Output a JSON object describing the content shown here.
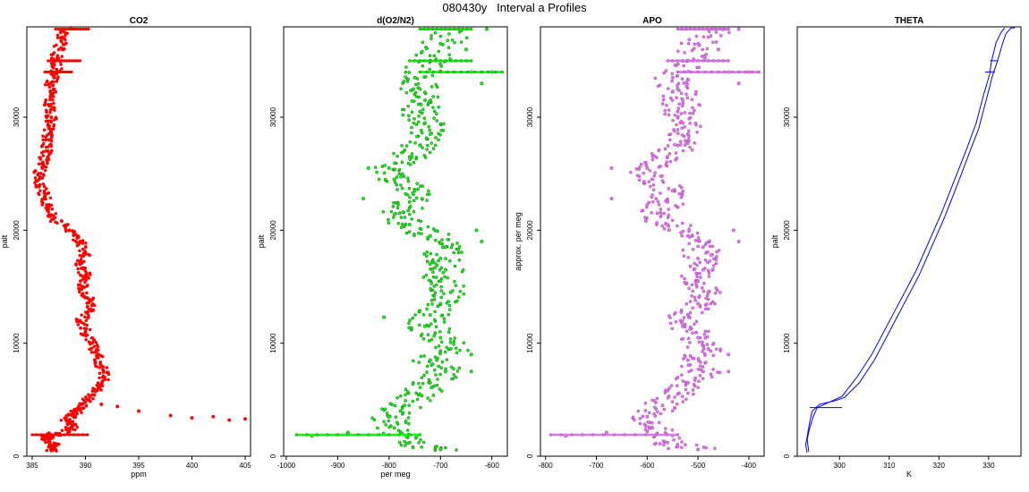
{
  "figure": {
    "title": "080430y   Interval a Profiles"
  },
  "chart_data": [
    {
      "type": "scatter",
      "title": "CO2",
      "xlabel": "ppm",
      "ylabel": "palt",
      "xlim": [
        384.5,
        405.5
      ],
      "ylim": [
        0,
        38000
      ],
      "xticks": [
        "385",
        "390",
        "395",
        "400",
        "405"
      ],
      "yticks": [
        "0",
        "10000",
        "20000",
        "30000"
      ],
      "color": "#ff0000",
      "series": [
        {
          "values_xy": [
            [
              386.8,
              500
            ],
            [
              387.2,
              1000
            ],
            [
              386.2,
              1500
            ],
            [
              386.5,
              1800
            ],
            [
              388.5,
              2200
            ],
            [
              388.8,
              2700
            ],
            [
              388.2,
              3200
            ],
            [
              388.8,
              3700
            ],
            [
              389.6,
              4200
            ],
            [
              390.2,
              5000
            ],
            [
              391.2,
              6000
            ],
            [
              391.8,
              7000
            ],
            [
              391.5,
              8000
            ],
            [
              391.2,
              9000
            ],
            [
              390.5,
              10000
            ],
            [
              390,
              11000
            ],
            [
              389.5,
              12000
            ],
            [
              390.5,
              13000
            ],
            [
              390.2,
              14000
            ],
            [
              389.8,
              15000
            ],
            [
              390,
              16000
            ],
            [
              389.5,
              17000
            ],
            [
              390,
              18000
            ],
            [
              389.5,
              19000
            ],
            [
              388.5,
              20000
            ],
            [
              387,
              21000
            ],
            [
              386.5,
              22000
            ],
            [
              386.2,
              23000
            ],
            [
              385.7,
              24000
            ],
            [
              385.6,
              25000
            ],
            [
              386,
              26000
            ],
            [
              386.5,
              27000
            ],
            [
              386.3,
              28000
            ],
            [
              386.6,
              29000
            ],
            [
              386.8,
              30000
            ],
            [
              386.6,
              31000
            ],
            [
              386.8,
              32000
            ],
            [
              386.7,
              33000
            ],
            [
              387.3,
              34000
            ],
            [
              387.2,
              35000
            ],
            [
              387.5,
              36000
            ],
            [
              387.8,
              37000
            ],
            [
              388.2,
              37800
            ]
          ]
        },
        {
          "values_xy": [
            [
              391.5,
              4600
            ],
            [
              393,
              4400
            ],
            [
              395,
              4000
            ],
            [
              398,
              3600
            ],
            [
              400,
              3400
            ],
            [
              402,
              3500
            ],
            [
              403.5,
              3200
            ],
            [
              405,
              3300
            ]
          ]
        }
      ],
      "segments": [
        {
          "y": 37800,
          "x": [
            387.2,
            390.3
          ]
        },
        {
          "y": 35000,
          "x": [
            386.5,
            389.5
          ]
        },
        {
          "y": 34000,
          "x": [
            386.2,
            388.7
          ]
        },
        {
          "y": 1900,
          "x": [
            385,
            390.2
          ]
        }
      ]
    },
    {
      "type": "scatter",
      "title": "d(O2/N2)",
      "xlabel": "per meg",
      "ylabel": "palt",
      "xlim": [
        -1005,
        -570
      ],
      "ylim": [
        0,
        38000
      ],
      "xticks": [
        "-1000",
        "-900",
        "-800",
        "-700",
        "-600"
      ],
      "yticks": [
        "0",
        "10000",
        "20000",
        "30000"
      ],
      "color": "#00ff00",
      "edge_color": "#333333",
      "series": [
        {
          "values_xy": [
            [
              -700,
              600
            ],
            [
              -760,
              1200
            ],
            [
              -790,
              2500
            ],
            [
              -800,
              3500
            ],
            [
              -770,
              4500
            ],
            [
              -740,
              5500
            ],
            [
              -720,
              6500
            ],
            [
              -690,
              7500
            ],
            [
              -720,
              8500
            ],
            [
              -680,
              9500
            ],
            [
              -700,
              10500
            ],
            [
              -730,
              11500
            ],
            [
              -720,
              12500
            ],
            [
              -700,
              13500
            ],
            [
              -680,
              14500
            ],
            [
              -700,
              15500
            ],
            [
              -690,
              16500
            ],
            [
              -700,
              17500
            ],
            [
              -690,
              18500
            ],
            [
              -720,
              19500
            ],
            [
              -760,
              20500
            ],
            [
              -780,
              21500
            ],
            [
              -760,
              22500
            ],
            [
              -750,
              23500
            ],
            [
              -790,
              24500
            ],
            [
              -800,
              25500
            ],
            [
              -760,
              26500
            ],
            [
              -740,
              27500
            ],
            [
              -720,
              28500
            ],
            [
              -730,
              29500
            ],
            [
              -740,
              30500
            ],
            [
              -730,
              31500
            ],
            [
              -740,
              32500
            ],
            [
              -750,
              33500
            ],
            [
              -720,
              35000
            ],
            [
              -700,
              36500
            ],
            [
              -670,
              37800
            ]
          ]
        },
        {
          "values_xy": [
            [
              -610,
              37800
            ],
            [
              -650,
              36000
            ],
            [
              -640,
              34000
            ],
            [
              -600,
              34000
            ],
            [
              -620,
              33000
            ],
            [
              -840,
              25500
            ],
            [
              -850,
              22800
            ],
            [
              -810,
              12300
            ],
            [
              -630,
              20000
            ],
            [
              -620,
              19000
            ],
            [
              -640,
              9000
            ],
            [
              -640,
              7500
            ],
            [
              -880,
              2100
            ],
            [
              -950,
              1800
            ]
          ]
        }
      ],
      "segments": [
        {
          "y": 37800,
          "x": [
            -740,
            -640
          ]
        },
        {
          "y": 35000,
          "x": [
            -760,
            -640
          ]
        },
        {
          "y": 34000,
          "x": [
            -740,
            -580
          ]
        },
        {
          "y": 1900,
          "x": [
            -980,
            -740
          ]
        }
      ]
    },
    {
      "type": "scatter",
      "title": "APO",
      "xlabel": "",
      "ylabel": "approx. per meg",
      "xlim": [
        -810,
        -370
      ],
      "ylim": [
        0,
        38000
      ],
      "xticks": [
        "-800",
        "-700",
        "-600",
        "-500",
        "-400"
      ],
      "yticks": [
        "0",
        "10000",
        "20000",
        "30000"
      ],
      "color": "#dd77ee",
      "edge_color": "#993399",
      "series": [
        {
          "values_xy": [
            [
              -500,
              600
            ],
            [
              -560,
              1200
            ],
            [
              -590,
              2500
            ],
            [
              -600,
              3500
            ],
            [
              -570,
              4500
            ],
            [
              -540,
              5500
            ],
            [
              -520,
              6500
            ],
            [
              -490,
              7500
            ],
            [
              -520,
              8500
            ],
            [
              -480,
              9500
            ],
            [
              -500,
              10500
            ],
            [
              -530,
              11500
            ],
            [
              -520,
              12500
            ],
            [
              -500,
              13500
            ],
            [
              -480,
              14500
            ],
            [
              -500,
              15500
            ],
            [
              -490,
              16500
            ],
            [
              -500,
              17500
            ],
            [
              -490,
              18500
            ],
            [
              -520,
              19500
            ],
            [
              -560,
              20500
            ],
            [
              -580,
              21500
            ],
            [
              -560,
              22500
            ],
            [
              -550,
              23500
            ],
            [
              -590,
              24500
            ],
            [
              -600,
              25500
            ],
            [
              -560,
              26500
            ],
            [
              -540,
              27500
            ],
            [
              -520,
              28500
            ],
            [
              -530,
              29500
            ],
            [
              -540,
              30500
            ],
            [
              -530,
              31500
            ],
            [
              -540,
              32500
            ],
            [
              -550,
              33500
            ],
            [
              -520,
              35000
            ],
            [
              -500,
              36500
            ],
            [
              -470,
              37800
            ]
          ]
        },
        {
          "values_xy": [
            [
              -420,
              37800
            ],
            [
              -460,
              36000
            ],
            [
              -440,
              34000
            ],
            [
              -400,
              34000
            ],
            [
              -420,
              33000
            ],
            [
              -670,
              25500
            ],
            [
              -670,
              22800
            ],
            [
              -430,
              20000
            ],
            [
              -420,
              19000
            ],
            [
              -440,
              9000
            ],
            [
              -440,
              7500
            ],
            [
              -680,
              2100
            ],
            [
              -760,
              1800
            ]
          ]
        }
      ],
      "segments": [
        {
          "y": 37800,
          "x": [
            -540,
            -440
          ]
        },
        {
          "y": 35000,
          "x": [
            -560,
            -440
          ]
        },
        {
          "y": 34000,
          "x": [
            -540,
            -380
          ]
        },
        {
          "y": 1900,
          "x": [
            -790,
            -540
          ]
        }
      ]
    },
    {
      "type": "line",
      "title": "THETA",
      "xlabel": "K",
      "ylabel": "palt",
      "xlim": [
        291.5,
        336.5
      ],
      "ylim": [
        0,
        38000
      ],
      "xticks": [
        "300",
        "310",
        "320",
        "330"
      ],
      "yticks": [
        "0",
        "10000",
        "20000",
        "30000"
      ],
      "color": "#0000ff",
      "series": [
        {
          "values_xy": [
            [
              293.5,
              300
            ],
            [
              293.2,
              1000
            ],
            [
              293.6,
              2000
            ],
            [
              294,
              3000
            ],
            [
              294.5,
              4000
            ],
            [
              296,
              4600
            ],
            [
              299,
              4900
            ],
            [
              301,
              5200
            ],
            [
              304,
              6500
            ],
            [
              307,
              8500
            ],
            [
              310,
              11000
            ],
            [
              313,
              13500
            ],
            [
              316,
              16000
            ],
            [
              318.5,
              18500
            ],
            [
              321,
              21000
            ],
            [
              323.5,
              23800
            ],
            [
              326,
              26700
            ],
            [
              328,
              29000
            ],
            [
              329.5,
              31500
            ],
            [
              330.8,
              33700
            ],
            [
              331.8,
              35000
            ],
            [
              332.8,
              36500
            ],
            [
              333.5,
              37400
            ],
            [
              334.5,
              37900
            ],
            [
              335.3,
              37900
            ]
          ]
        },
        {
          "values_xy": [
            [
              293.8,
              400
            ],
            [
              293.5,
              1500
            ],
            [
              294,
              2500
            ],
            [
              294.7,
              3500
            ],
            [
              295.5,
              4300
            ],
            [
              298,
              4800
            ],
            [
              300.5,
              5300
            ],
            [
              303.5,
              7000
            ],
            [
              306.5,
              9000
            ],
            [
              309.5,
              11500
            ],
            [
              312.5,
              14000
            ],
            [
              315.5,
              16500
            ],
            [
              318,
              19000
            ],
            [
              320.5,
              21500
            ],
            [
              323,
              24300
            ],
            [
              325.5,
              27100
            ],
            [
              327.5,
              29500
            ],
            [
              329,
              32000
            ],
            [
              330.2,
              33800
            ],
            [
              330.6,
              35000
            ],
            [
              331.5,
              36600
            ],
            [
              332.5,
              37500
            ],
            [
              333.2,
              37900
            ]
          ]
        }
      ],
      "segments": [
        {
          "y": 35000,
          "x": [
            330.3,
            331.8
          ]
        },
        {
          "y": 34000,
          "x": [
            329.3,
            331.3
          ]
        },
        {
          "y": 4300,
          "x": [
            294,
            300.5
          ]
        }
      ]
    }
  ]
}
